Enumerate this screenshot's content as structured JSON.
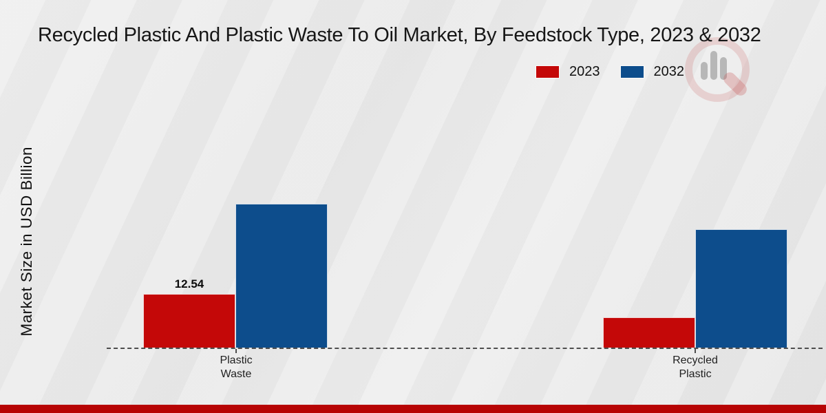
{
  "branding": {
    "watermark_icon": "magnifier-bar-chart-logo"
  },
  "footer": {
    "accent_color": "#b70404"
  },
  "chart_data": {
    "type": "bar",
    "title": "Recycled Plastic And Plastic Waste To Oil Market, By Feedstock Type, 2023 & 2032",
    "xlabel": "",
    "ylabel": "Market Size in USD Billion",
    "categories": [
      "Plastic Waste",
      "Recycled Plastic"
    ],
    "tick_lines": [
      [
        "Plastic",
        "Waste"
      ],
      [
        "Recycled",
        "Plastic"
      ]
    ],
    "series": [
      {
        "name": "2023",
        "color": "#c40808",
        "values": [
          12.54,
          7.1
        ]
      },
      {
        "name": "2032",
        "color": "#0d4d8c",
        "values": [
          33.6,
          27.7
        ]
      }
    ],
    "data_label": {
      "text": "12.54",
      "series": "2023",
      "category": "Plastic Waste"
    },
    "ylim": [
      0,
      36
    ],
    "grid": false,
    "legend_position": "top-right",
    "baseline_style": "dashed"
  }
}
